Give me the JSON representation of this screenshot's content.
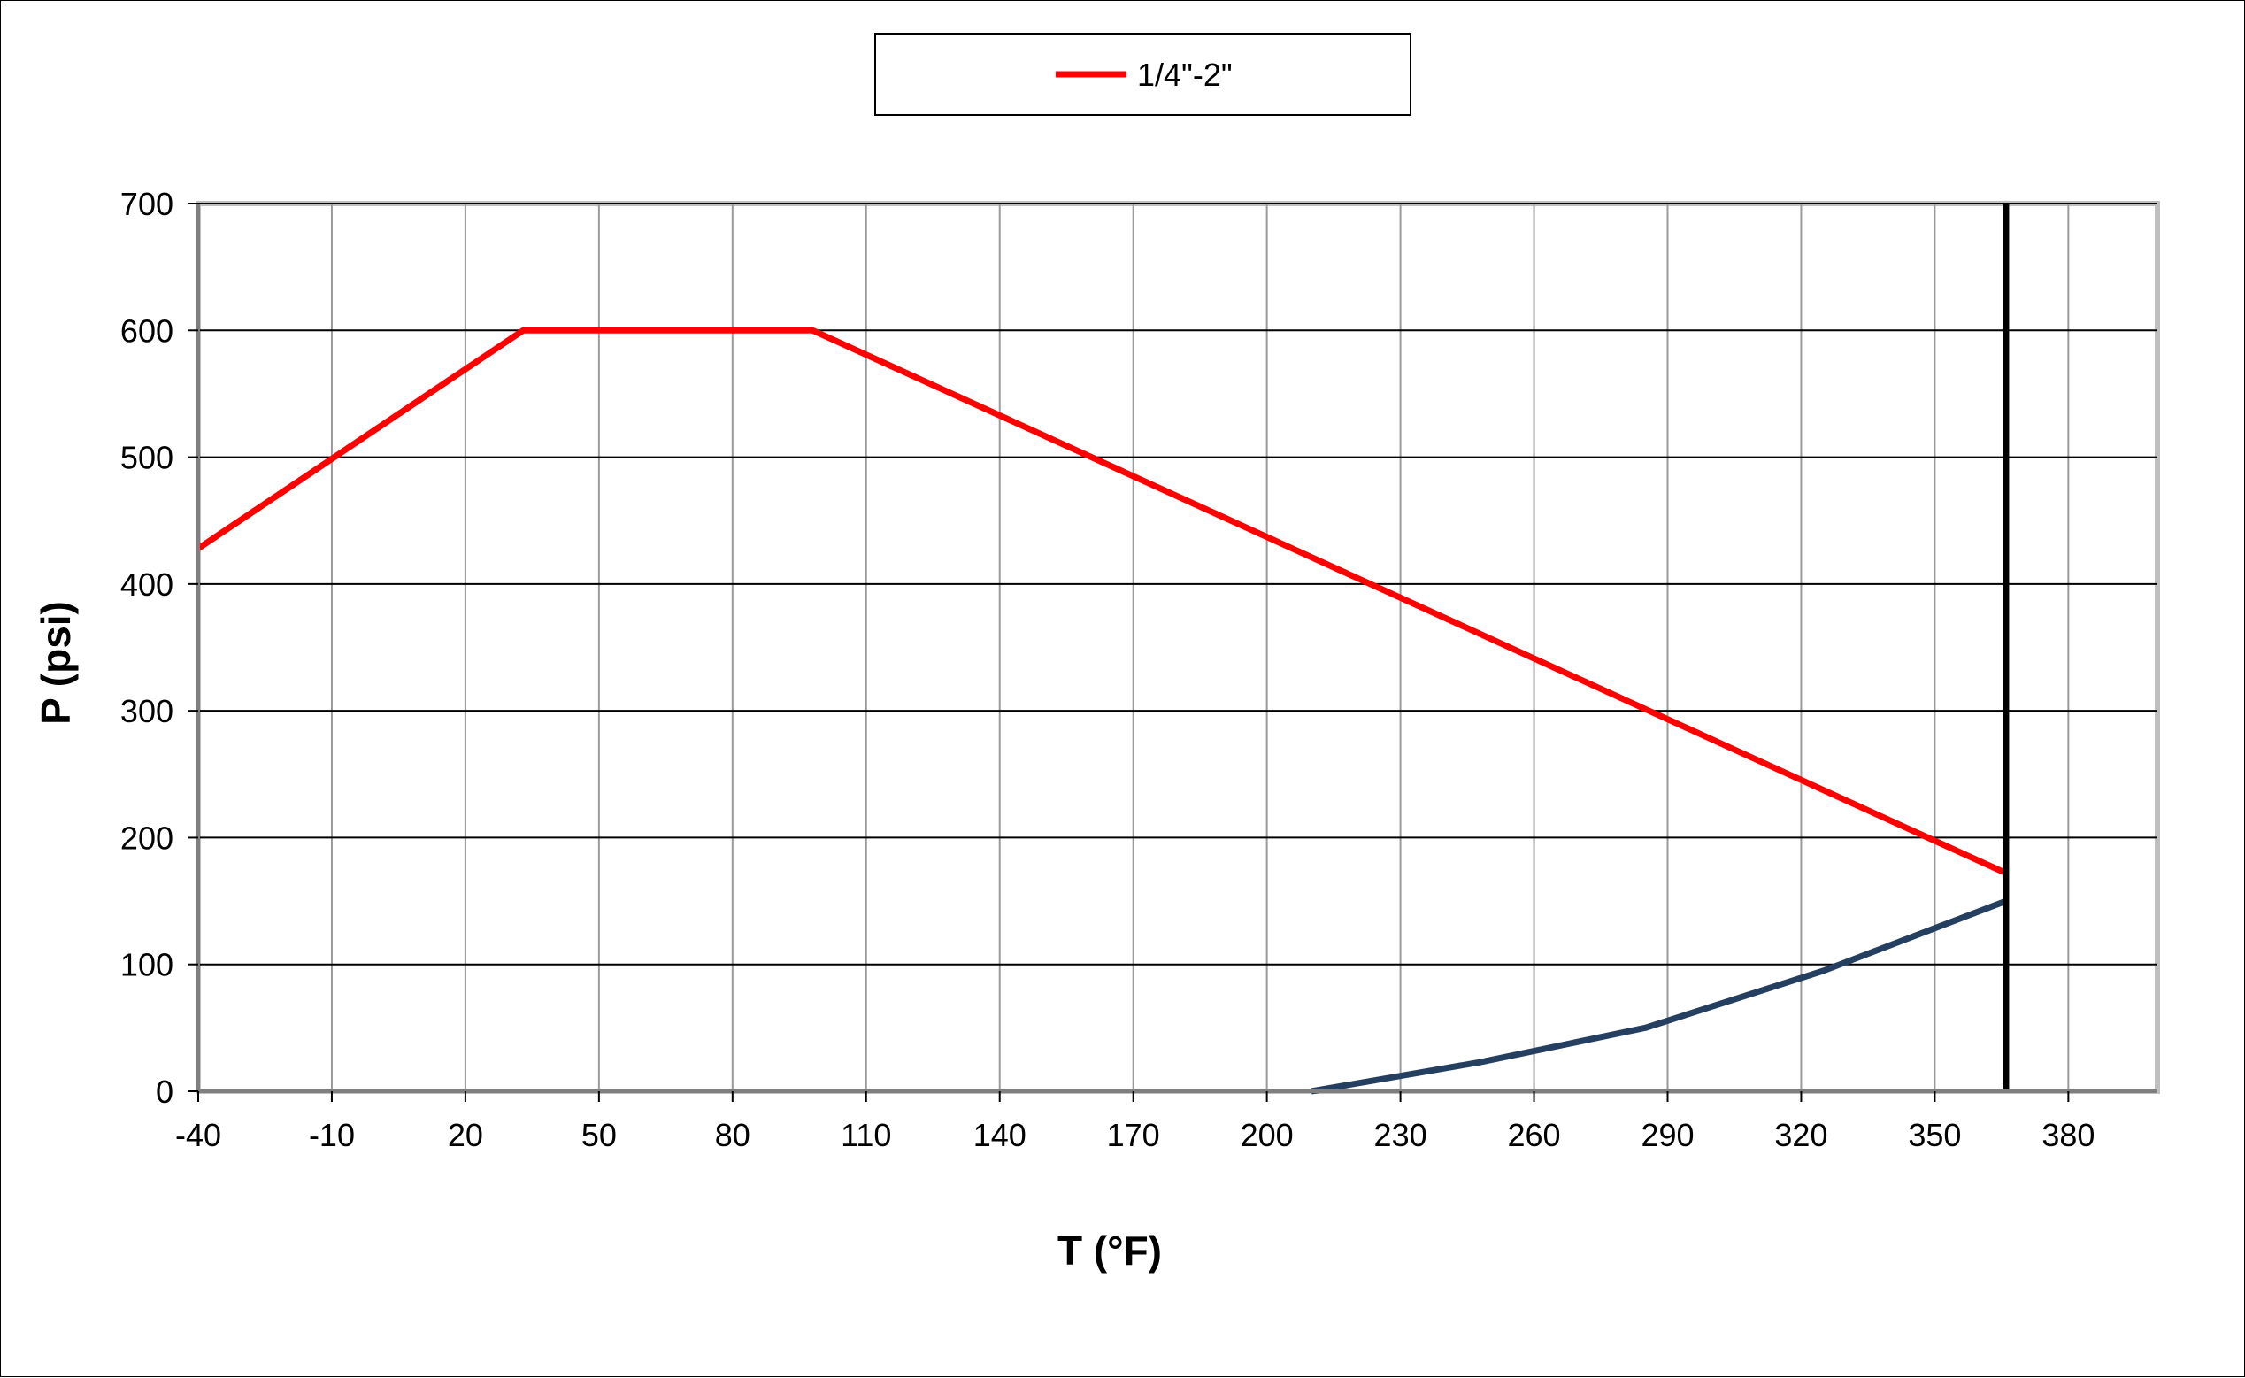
{
  "chart_data": {
    "type": "line",
    "xlabel": "T (°F)",
    "ylabel": "P (psi)",
    "xlim": [
      -40,
      400
    ],
    "ylim": [
      0,
      700
    ],
    "x_ticks": [
      -40,
      -10,
      20,
      50,
      80,
      110,
      140,
      170,
      200,
      230,
      260,
      290,
      320,
      350,
      380
    ],
    "y_ticks": [
      0,
      100,
      200,
      300,
      400,
      500,
      600,
      700
    ],
    "grid": true,
    "legend_position": "top-center",
    "series": [
      {
        "name": "1/4\"-2\"",
        "color": "#ff0000",
        "points": [
          [
            -40,
            428
          ],
          [
            33,
            600
          ],
          [
            98,
            600
          ],
          [
            366,
            172
          ]
        ]
      },
      {
        "color": "#243f60",
        "points": [
          [
            210,
            0
          ],
          [
            248,
            23
          ],
          [
            285,
            50
          ],
          [
            325,
            95
          ],
          [
            366,
            150
          ]
        ]
      }
    ],
    "reference_lines": [
      {
        "orientation": "vertical",
        "x": 366,
        "color": "#000000"
      }
    ]
  }
}
